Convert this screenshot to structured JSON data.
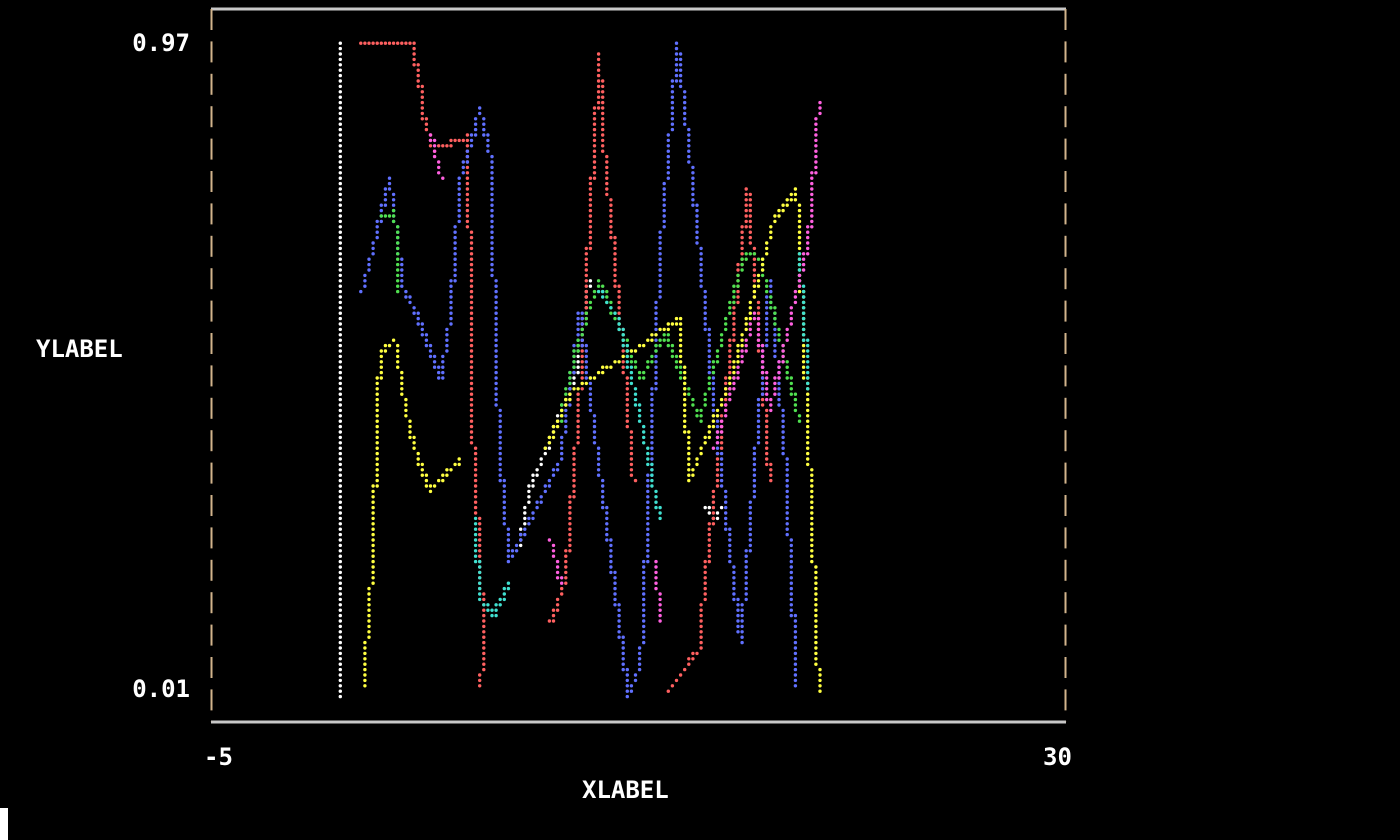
{
  "chart_data": {
    "type": "scatter",
    "title": "",
    "xlabel": "XLABEL",
    "ylabel": "YLABEL",
    "xlim": [
      -5,
      30
    ],
    "ylim": [
      0.01,
      0.97
    ],
    "xticks": [
      "-5",
      "30"
    ],
    "yticks": [
      "0.97",
      "0.01"
    ],
    "grid": false,
    "series": [
      {
        "color": "#ffffff",
        "x": [
          0.3,
          0.3
        ],
        "y": [
          0.0,
          0.97
        ]
      },
      {
        "color": "#ffffff",
        "x": [
          7.6,
          8.05,
          9.9,
          10.5
        ],
        "y": [
          0.22,
          0.31,
          0.47,
          0.62
        ]
      },
      {
        "color": "#ffffff",
        "x": [
          15.3,
          15.6,
          15.9
        ],
        "y": [
          0.28,
          0.26,
          0.28
        ]
      },
      {
        "color": "#ff6060",
        "x": [
          1.16,
          2.3,
          3.2,
          3.5,
          3.7,
          4.07,
          5.4,
          5.6,
          5.6,
          5.8,
          6.2,
          6.0
        ],
        "y": [
          0.97,
          0.97,
          0.97,
          0.915,
          0.86,
          0.81,
          0.83,
          0.66,
          0.44,
          0.335,
          0.07,
          0.015
        ]
      },
      {
        "color": "#ff6060",
        "x": [
          8.9,
          9.5,
          10.1,
          10.9,
          11.1,
          11.5,
          11.9,
          12.3
        ],
        "y": [
          0.11,
          0.17,
          0.45,
          0.95,
          0.81,
          0.66,
          0.5,
          0.32
        ]
      },
      {
        "color": "#ff6060",
        "x": [
          13.8,
          15.0,
          15.2,
          16.7,
          17.0,
          17.9
        ],
        "y": [
          0.01,
          0.07,
          0.16,
          0.65,
          0.75,
          0.32
        ]
      },
      {
        "color": "#6070ff",
        "x": [
          1.16,
          2.3,
          2.9,
          3.5,
          4.4,
          4.8,
          5.2,
          6.0,
          6.4,
          6.6,
          6.8,
          7.2,
          9.3,
          10.1,
          11.7,
          12.1,
          12.6,
          13.4,
          14.1,
          14.6,
          15.0,
          15.8,
          16.7,
          17.9,
          18.5,
          19.0
        ],
        "y": [
          0.6,
          0.77,
          0.6,
          0.56,
          0.47,
          0.57,
          0.77,
          0.87,
          0.81,
          0.59,
          0.365,
          0.2,
          0.35,
          0.57,
          0.11,
          0.0,
          0.05,
          0.66,
          0.97,
          0.81,
          0.66,
          0.365,
          0.08,
          0.62,
          0.365,
          0.015
        ]
      },
      {
        "color": "#50e050",
        "x": [
          1.9,
          2.5,
          2.7
        ],
        "y": [
          0.71,
          0.72,
          0.6
        ]
      },
      {
        "color": "#50e050",
        "x": [
          9.3,
          9.9,
          10.9,
          12.6,
          13.6,
          15.0,
          16.9,
          17.5,
          19.1
        ],
        "y": [
          0.41,
          0.51,
          0.62,
          0.47,
          0.54,
          0.41,
          0.66,
          0.65,
          0.41
        ]
      },
      {
        "color": "#ffff40",
        "x": [
          1.2,
          1.5,
          1.7,
          1.9,
          2.5,
          3.1,
          3.9,
          5.2
        ],
        "y": [
          0.015,
          0.14,
          0.32,
          0.51,
          0.53,
          0.395,
          0.305,
          0.35
        ]
      },
      {
        "color": "#ffff40",
        "x": [
          8.7,
          9.7,
          14.2,
          14.6,
          16.3,
          18.1,
          19.0,
          19.5,
          19.9
        ],
        "y": [
          0.365,
          0.45,
          0.56,
          0.32,
          0.47,
          0.71,
          0.75,
          0.365,
          0.01
        ]
      },
      {
        "color": "#40e0d0",
        "x": [
          5.8,
          6.0,
          6.6,
          7.2
        ],
        "y": [
          0.26,
          0.14,
          0.12,
          0.17
        ]
      },
      {
        "color": "#40e0d0",
        "x": [
          10.9,
          11.7,
          12.6,
          13.4
        ],
        "y": [
          0.6,
          0.56,
          0.41,
          0.26
        ]
      },
      {
        "color": "#40e0d0",
        "x": [
          19.1,
          19.5
        ],
        "y": [
          0.66,
          0.455
        ]
      },
      {
        "color": "#ff60e0",
        "x": [
          4.0,
          4.4
        ],
        "y": [
          0.83,
          0.77
        ]
      },
      {
        "color": "#ff60e0",
        "x": [
          8.9,
          9.3
        ],
        "y": [
          0.23,
          0.17
        ]
      },
      {
        "color": "#ff60e0",
        "x": [
          13.2,
          13.4
        ],
        "y": [
          0.2,
          0.11
        ]
      },
      {
        "color": "#ff60e0",
        "x": [
          15.6,
          17.3,
          17.9,
          19.5,
          19.9
        ],
        "y": [
          0.365,
          0.57,
          0.425,
          0.68,
          0.88
        ]
      }
    ]
  },
  "axis_colors": {
    "frame": "#c8c8c8",
    "side_ticks": "#d2b48c"
  }
}
